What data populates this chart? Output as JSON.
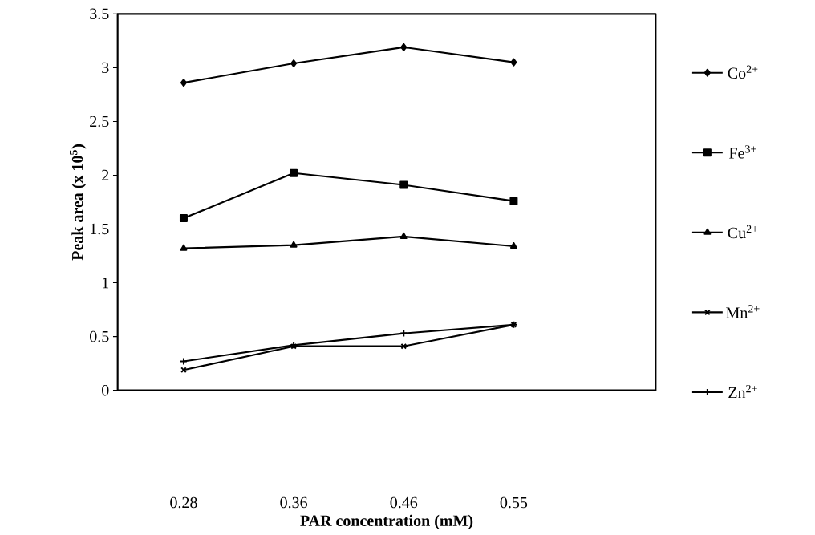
{
  "chart_data": {
    "type": "line",
    "xlabel": "PAR concentration (mM)",
    "ylabel": "Peak area (x 10$^{5}$)",
    "categories": [
      "0.28",
      "0.36",
      "0.46",
      "0.55"
    ],
    "series": [
      {
        "name": "Co$^{2+}$",
        "color": "#000000",
        "marker": "diamond",
        "values": [
          2.86,
          3.04,
          3.19,
          3.05
        ]
      },
      {
        "name": "Fe$^{3+}$",
        "color": "#000000",
        "marker": "square",
        "values": [
          1.6,
          2.02,
          1.91,
          1.76
        ]
      },
      {
        "name": "Cu$^{2+}$",
        "color": "#000000",
        "marker": "triangle",
        "values": [
          1.32,
          1.35,
          1.43,
          1.34
        ]
      },
      {
        "name": "Mn$^{2+}$",
        "color": "#000000",
        "marker": "cross",
        "values": [
          0.19,
          0.41,
          0.41,
          0.61
        ]
      },
      {
        "name": "Zn$^{2+}$",
        "color": "#000000",
        "marker": "plus",
        "values": [
          0.27,
          0.42,
          0.53,
          0.61
        ]
      }
    ],
    "ylim": [
      0,
      3.5
    ],
    "yticks": [
      0,
      0.5,
      1,
      1.5,
      2,
      2.5,
      3,
      3.5
    ],
    "grid": false,
    "legend": "right",
    "line_style": "solid"
  }
}
